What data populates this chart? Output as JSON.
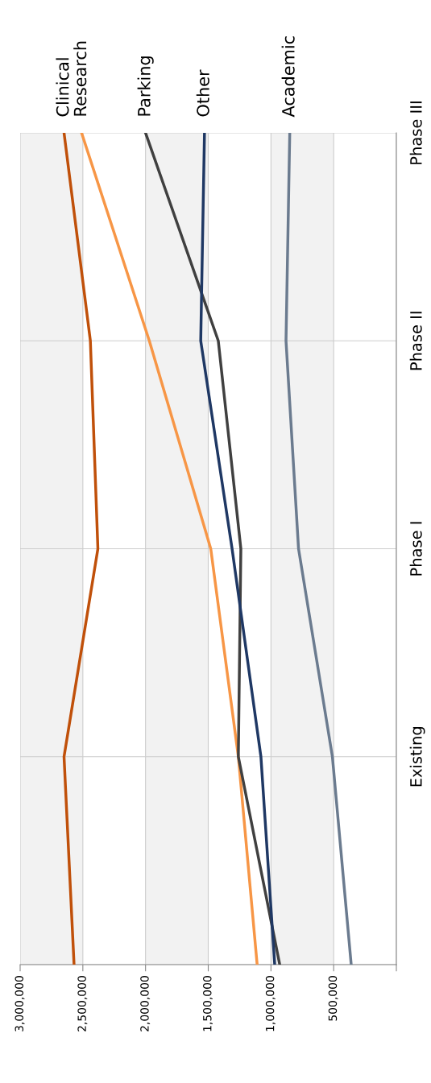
{
  "chart_data": {
    "type": "line",
    "orientation": "horizontal",
    "categories": [
      "Phase III",
      "Phase II",
      "Phase I",
      "Existing",
      null
    ],
    "xlim": [
      3000000,
      0
    ],
    "xticks": [
      {
        "value": 0,
        "label": null
      },
      {
        "value": 500000,
        "label": "500,000"
      },
      {
        "value": 1000000,
        "label": "1,000,000"
      },
      {
        "value": 1500000,
        "label": "1,500,000"
      },
      {
        "value": 2000000,
        "label": "2,000,000"
      },
      {
        "value": 2500000,
        "label": "2,500,000"
      },
      {
        "value": 3000000,
        "label": "3,000,000"
      }
    ],
    "series": [
      {
        "name": "Clinical",
        "color": "#c0500a",
        "values": [
          2650000,
          2440000,
          2380000,
          2650000,
          2570000
        ]
      },
      {
        "name": "Research",
        "color": "#f79646",
        "values": [
          2510000,
          1970000,
          1480000,
          1260000,
          1110000
        ]
      },
      {
        "name": "Parking",
        "color": "#404040",
        "values": [
          2000000,
          1420000,
          1240000,
          1260000,
          930000
        ]
      },
      {
        "name": "Other",
        "color": "#1f3864",
        "values": [
          1530000,
          1560000,
          1310000,
          1080000,
          970000
        ]
      },
      {
        "name": "Academic",
        "color": "#6b7b8f",
        "values": [
          850000,
          880000,
          780000,
          510000,
          360000
        ]
      }
    ],
    "bands": [
      {
        "axis": "x",
        "from": 2500000,
        "to": 3000000,
        "color": "#f2f2f2"
      },
      {
        "axis": "x",
        "from": 1500000,
        "to": 2000000,
        "color": "#f2f2f2"
      },
      {
        "axis": "x",
        "from": 500000,
        "to": 1000000,
        "color": "#f2f2f2"
      }
    ],
    "grid": true,
    "line_style": "solid"
  }
}
